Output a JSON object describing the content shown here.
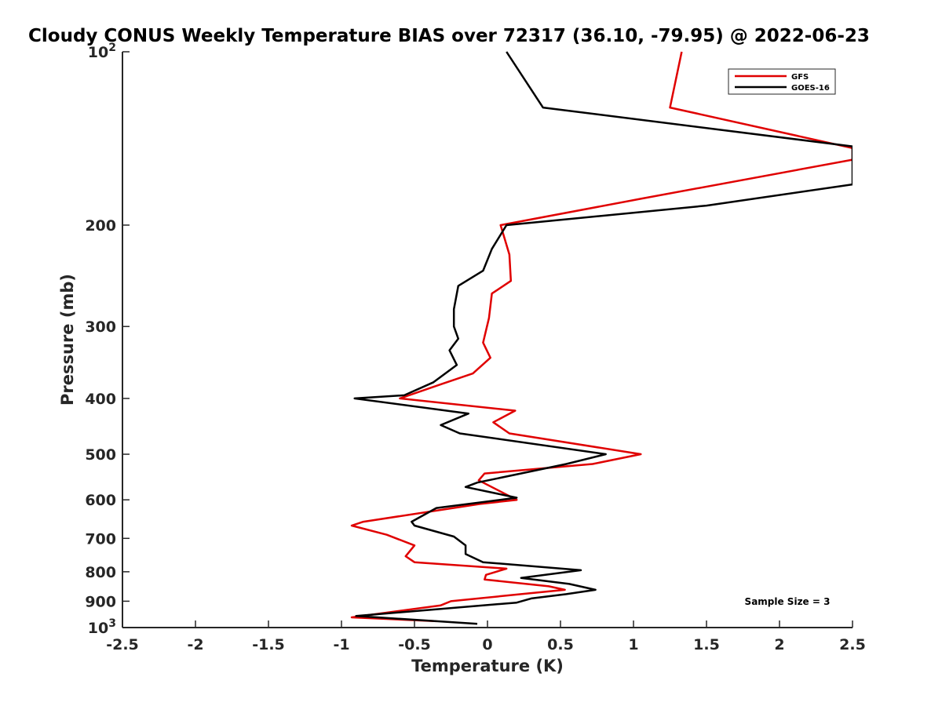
{
  "chart_data": {
    "type": "line",
    "title": "Cloudy CONUS Weekly Temperature BIAS over 72317 (36.10, -79.95) @ 2022-06-23",
    "xlabel": "Temperature (K)",
    "ylabel": "Pressure (mb)",
    "xlim": [
      -2.5,
      2.5
    ],
    "ylim": [
      100,
      1000
    ],
    "y_scale": "log",
    "y_reversed": true,
    "x_ticks": [
      "-2.5",
      "-2",
      "-1.5",
      "-1",
      "-0.5",
      "0",
      "0.5",
      "1",
      "1.5",
      "2",
      "2.5"
    ],
    "y_ticks": [
      {
        "value": 100,
        "base": "10",
        "exp": "2"
      },
      {
        "value": 200,
        "label": "200"
      },
      {
        "value": 300,
        "label": "300"
      },
      {
        "value": 400,
        "label": "400"
      },
      {
        "value": 500,
        "label": "500"
      },
      {
        "value": 600,
        "label": "600"
      },
      {
        "value": 700,
        "label": "700"
      },
      {
        "value": 800,
        "label": "800"
      },
      {
        "value": 900,
        "label": "900"
      },
      {
        "value": 1000,
        "base": "10",
        "exp": "3"
      }
    ],
    "legend_position": "top-right",
    "series": [
      {
        "name": "GFS",
        "color": "#e00000",
        "points": [
          [
            1.33,
            100
          ],
          [
            1.25,
            125
          ],
          [
            2.5,
            147
          ],
          [
            2.5,
            154
          ],
          [
            1.05,
            180
          ],
          [
            0.09,
            200
          ],
          [
            0.15,
            225
          ],
          [
            0.16,
            250
          ],
          [
            0.03,
            263
          ],
          [
            0.01,
            290
          ],
          [
            -0.03,
            320
          ],
          [
            0.02,
            340
          ],
          [
            -0.1,
            362
          ],
          [
            -0.32,
            378
          ],
          [
            -0.6,
            400
          ],
          [
            0.19,
            420
          ],
          [
            0.04,
            440
          ],
          [
            0.15,
            460
          ],
          [
            1.05,
            500
          ],
          [
            0.72,
            520
          ],
          [
            -0.02,
            540
          ],
          [
            -0.06,
            555
          ],
          [
            0.2,
            600
          ],
          [
            -0.05,
            610
          ],
          [
            -0.85,
            655
          ],
          [
            -0.93,
            665
          ],
          [
            -0.69,
            690
          ],
          [
            -0.5,
            720
          ],
          [
            -0.56,
            752
          ],
          [
            -0.5,
            770
          ],
          [
            0.13,
            790
          ],
          [
            -0.01,
            810
          ],
          [
            -0.02,
            825
          ],
          [
            0.42,
            848
          ],
          [
            0.53,
            860
          ],
          [
            0.23,
            875
          ],
          [
            -0.25,
            900
          ],
          [
            -0.32,
            915
          ],
          [
            -0.93,
            960
          ],
          [
            -0.35,
            975
          ]
        ]
      },
      {
        "name": "GOES-16",
        "color": "#000000",
        "points": [
          [
            0.13,
            100
          ],
          [
            0.38,
            125
          ],
          [
            2.5,
            146
          ],
          [
            2.5,
            170
          ],
          [
            1.5,
            185
          ],
          [
            0.13,
            200
          ],
          [
            0.03,
            220
          ],
          [
            -0.03,
            240
          ],
          [
            -0.2,
            255
          ],
          [
            -0.23,
            280
          ],
          [
            -0.23,
            300
          ],
          [
            -0.2,
            315
          ],
          [
            -0.26,
            330
          ],
          [
            -0.21,
            350
          ],
          [
            -0.37,
            375
          ],
          [
            -0.57,
            395
          ],
          [
            -0.91,
            400
          ],
          [
            -0.13,
            425
          ],
          [
            -0.32,
            445
          ],
          [
            -0.19,
            460
          ],
          [
            0.81,
            500
          ],
          [
            0.54,
            520
          ],
          [
            -0.07,
            560
          ],
          [
            -0.15,
            570
          ],
          [
            0.2,
            595
          ],
          [
            -0.35,
            620
          ],
          [
            -0.52,
            655
          ],
          [
            -0.5,
            665
          ],
          [
            -0.23,
            695
          ],
          [
            -0.15,
            720
          ],
          [
            -0.15,
            745
          ],
          [
            -0.03,
            770
          ],
          [
            0.64,
            795
          ],
          [
            0.23,
            820
          ],
          [
            0.56,
            840
          ],
          [
            0.74,
            860
          ],
          [
            0.54,
            875
          ],
          [
            0.3,
            890
          ],
          [
            0.2,
            905
          ],
          [
            -0.9,
            955
          ],
          [
            -0.07,
            985
          ]
        ]
      }
    ],
    "annotation": "Sample Size = 3"
  }
}
